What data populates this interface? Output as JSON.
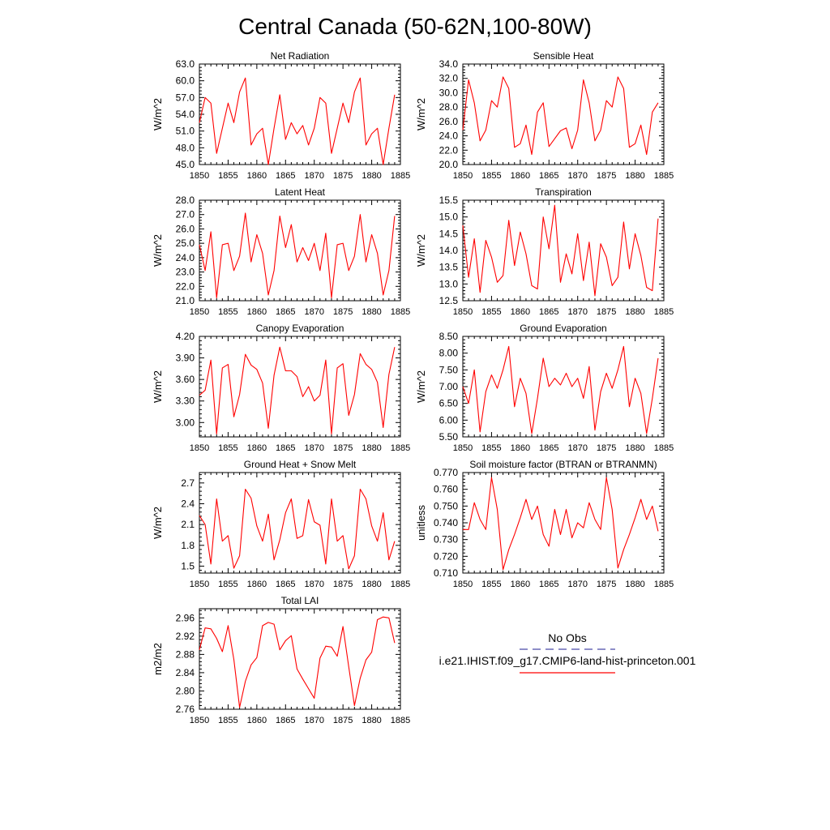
{
  "figure": {
    "title": "Central Canada (50-62N,100-80W)",
    "line_color": "#ff0000",
    "obs_color": "#4a4aa8"
  },
  "legend": {
    "obs_label": "No Obs",
    "model_label": "i.e21.IHIST.f09_g17.CMIP6-land-hist-princeton.001"
  },
  "chart_data": [
    {
      "type": "line",
      "title": "Net Radiation",
      "ylabel": "W/m^2",
      "xlim": [
        1850,
        1885
      ],
      "ylim": [
        45.0,
        63.0
      ],
      "xticks": [
        "1850",
        "1855",
        "1860",
        "1865",
        "1870",
        "1875",
        "1880",
        "1885"
      ],
      "yticks": [
        "45.0",
        "48.0",
        "51.0",
        "54.0",
        "57.0",
        "60.0",
        "63.0"
      ],
      "x": [
        1850,
        1851,
        1852,
        1853,
        1854,
        1855,
        1856,
        1857,
        1858,
        1859,
        1860,
        1861,
        1862,
        1863,
        1864,
        1865,
        1866,
        1867,
        1868,
        1869,
        1870,
        1871,
        1872,
        1873,
        1874,
        1875,
        1876,
        1877,
        1878,
        1879,
        1880,
        1881,
        1882,
        1883,
        1884
      ],
      "values": [
        52.5,
        57.0,
        56.0,
        47.0,
        51.5,
        56.0,
        52.5,
        58.0,
        60.5,
        48.5,
        50.5,
        51.5,
        45.0,
        51.5,
        57.5,
        49.5,
        52.5,
        50.5,
        52.0,
        48.5,
        51.5,
        57.0,
        56.0,
        47.0,
        51.5,
        56.0,
        52.5,
        58.0,
        60.5,
        48.5,
        50.5,
        51.5,
        45.0,
        51.5,
        57.5
      ]
    },
    {
      "type": "line",
      "title": "Sensible Heat",
      "ylabel": "W/m^2",
      "xlim": [
        1850,
        1885
      ],
      "ylim": [
        20.0,
        34.0
      ],
      "xticks": [
        "1850",
        "1855",
        "1860",
        "1865",
        "1870",
        "1875",
        "1880",
        "1885"
      ],
      "yticks": [
        "20.0",
        "22.0",
        "24.0",
        "26.0",
        "28.0",
        "30.0",
        "32.0",
        "34.0"
      ],
      "x": [
        1850,
        1851,
        1852,
        1853,
        1854,
        1855,
        1856,
        1857,
        1858,
        1859,
        1860,
        1861,
        1862,
        1863,
        1864,
        1865,
        1866,
        1867,
        1868,
        1869,
        1870,
        1871,
        1872,
        1873,
        1874,
        1875,
        1876,
        1877,
        1878,
        1879,
        1880,
        1881,
        1882,
        1883,
        1884
      ],
      "values": [
        24.8,
        31.8,
        28.6,
        23.3,
        24.8,
        28.9,
        28.0,
        32.2,
        30.6,
        22.4,
        22.9,
        25.5,
        21.4,
        27.3,
        28.6,
        22.5,
        23.6,
        24.7,
        25.1,
        22.2,
        24.8,
        31.8,
        28.6,
        23.3,
        24.8,
        28.9,
        28.0,
        32.2,
        30.6,
        22.4,
        22.9,
        25.5,
        21.4,
        27.3,
        28.6
      ]
    },
    {
      "type": "line",
      "title": "Latent Heat",
      "ylabel": "W/m^2",
      "xlim": [
        1850,
        1885
      ],
      "ylim": [
        21.0,
        28.0
      ],
      "xticks": [
        "1850",
        "1855",
        "1860",
        "1865",
        "1870",
        "1875",
        "1880",
        "1885"
      ],
      "yticks": [
        "21.0",
        "22.0",
        "23.0",
        "24.0",
        "25.0",
        "26.0",
        "27.0",
        "28.0"
      ],
      "x": [
        1850,
        1851,
        1852,
        1853,
        1854,
        1855,
        1856,
        1857,
        1858,
        1859,
        1860,
        1861,
        1862,
        1863,
        1864,
        1865,
        1866,
        1867,
        1868,
        1869,
        1870,
        1871,
        1872,
        1873,
        1874,
        1875,
        1876,
        1877,
        1878,
        1879,
        1880,
        1881,
        1882,
        1883,
        1884
      ],
      "values": [
        24.9,
        23.1,
        25.8,
        21.2,
        24.9,
        25.0,
        23.1,
        24.1,
        27.1,
        23.7,
        25.6,
        24.3,
        21.4,
        23.1,
        26.9,
        24.7,
        26.3,
        23.7,
        24.7,
        23.8,
        25.0,
        23.1,
        25.7,
        21.2,
        24.9,
        25.0,
        23.1,
        24.1,
        27.0,
        23.7,
        25.6,
        24.3,
        21.4,
        23.1,
        26.9
      ]
    },
    {
      "type": "line",
      "title": "Transpiration",
      "ylabel": "W/m^2",
      "xlim": [
        1850,
        1885
      ],
      "ylim": [
        12.5,
        15.5
      ],
      "xticks": [
        "1850",
        "1855",
        "1860",
        "1865",
        "1870",
        "1875",
        "1880",
        "1885"
      ],
      "yticks": [
        "12.5",
        "13.0",
        "13.5",
        "14.0",
        "14.5",
        "15.0",
        "15.5"
      ],
      "x": [
        1850,
        1851,
        1852,
        1853,
        1854,
        1855,
        1856,
        1857,
        1858,
        1859,
        1860,
        1861,
        1862,
        1863,
        1864,
        1865,
        1866,
        1867,
        1868,
        1869,
        1870,
        1871,
        1872,
        1873,
        1874,
        1875,
        1876,
        1877,
        1878,
        1879,
        1880,
        1881,
        1882,
        1883,
        1884
      ],
      "values": [
        14.75,
        13.2,
        14.35,
        12.75,
        14.3,
        13.8,
        13.05,
        13.25,
        14.9,
        13.55,
        14.55,
        13.9,
        12.95,
        12.85,
        15.0,
        14.05,
        15.35,
        13.05,
        13.9,
        13.3,
        14.5,
        13.1,
        14.25,
        12.65,
        14.2,
        13.8,
        12.95,
        13.2,
        14.85,
        13.45,
        14.5,
        13.85,
        12.9,
        12.8,
        14.95
      ]
    },
    {
      "type": "line",
      "title": "Canopy Evaporation",
      "ylabel": "W/m^2",
      "xlim": [
        1850,
        1885
      ],
      "ylim": [
        2.8,
        4.2
      ],
      "xticks": [
        "1850",
        "1855",
        "1860",
        "1865",
        "1870",
        "1875",
        "1880",
        "1885"
      ],
      "yticks": [
        "3.00",
        "3.30",
        "3.60",
        "3.90",
        "4.20"
      ],
      "x": [
        1850,
        1851,
        1852,
        1853,
        1854,
        1855,
        1856,
        1857,
        1858,
        1859,
        1860,
        1861,
        1862,
        1863,
        1864,
        1865,
        1866,
        1867,
        1868,
        1869,
        1870,
        1871,
        1872,
        1873,
        1874,
        1875,
        1876,
        1877,
        1878,
        1879,
        1880,
        1881,
        1882,
        1883,
        1884
      ],
      "values": [
        3.38,
        3.45,
        3.87,
        2.84,
        3.76,
        3.81,
        3.08,
        3.39,
        3.95,
        3.8,
        3.74,
        3.55,
        2.92,
        3.66,
        4.05,
        3.72,
        3.72,
        3.64,
        3.36,
        3.5,
        3.3,
        3.38,
        3.87,
        2.84,
        3.76,
        3.82,
        3.1,
        3.39,
        3.96,
        3.81,
        3.74,
        3.56,
        2.93,
        3.67,
        4.05
      ]
    },
    {
      "type": "line",
      "title": "Ground Evaporation",
      "ylabel": "W/m^2",
      "xlim": [
        1850,
        1885
      ],
      "ylim": [
        5.5,
        8.5
      ],
      "xticks": [
        "1850",
        "1855",
        "1860",
        "1865",
        "1870",
        "1875",
        "1880",
        "1885"
      ],
      "yticks": [
        "5.50",
        "6.00",
        "6.50",
        "7.00",
        "7.50",
        "8.00",
        "8.50"
      ],
      "x": [
        1850,
        1851,
        1852,
        1853,
        1854,
        1855,
        1856,
        1857,
        1858,
        1859,
        1860,
        1861,
        1862,
        1863,
        1864,
        1865,
        1866,
        1867,
        1868,
        1869,
        1870,
        1871,
        1872,
        1873,
        1874,
        1875,
        1876,
        1877,
        1878,
        1879,
        1880,
        1881,
        1882,
        1883,
        1884
      ],
      "values": [
        7.0,
        6.5,
        7.5,
        5.65,
        6.85,
        7.35,
        6.95,
        7.5,
        8.2,
        6.4,
        7.25,
        6.8,
        5.6,
        6.65,
        7.85,
        7.0,
        7.25,
        7.05,
        7.4,
        7.0,
        7.25,
        6.65,
        7.6,
        5.7,
        6.85,
        7.4,
        6.95,
        7.5,
        8.2,
        6.4,
        7.25,
        6.8,
        5.6,
        6.65,
        7.85
      ]
    },
    {
      "type": "line",
      "title": "Ground Heat + Snow Melt",
      "ylabel": "W/m^2",
      "xlim": [
        1850,
        1885
      ],
      "ylim": [
        1.4,
        2.85
      ],
      "xticks": [
        "1850",
        "1855",
        "1860",
        "1865",
        "1870",
        "1875",
        "1880",
        "1885"
      ],
      "yticks": [
        "1.5",
        "1.8",
        "2.1",
        "2.4",
        "2.7"
      ],
      "x": [
        1850,
        1851,
        1852,
        1853,
        1854,
        1855,
        1856,
        1857,
        1858,
        1859,
        1860,
        1861,
        1862,
        1863,
        1864,
        1865,
        1866,
        1867,
        1868,
        1869,
        1870,
        1871,
        1872,
        1873,
        1874,
        1875,
        1876,
        1877,
        1878,
        1879,
        1880,
        1881,
        1882,
        1883,
        1884
      ],
      "values": [
        2.23,
        2.1,
        1.53,
        2.47,
        1.86,
        1.94,
        1.47,
        1.65,
        2.61,
        2.48,
        2.08,
        1.86,
        2.25,
        1.59,
        1.88,
        2.27,
        2.47,
        1.9,
        1.94,
        2.46,
        2.14,
        2.09,
        1.53,
        2.47,
        1.86,
        1.94,
        1.46,
        1.65,
        2.61,
        2.47,
        2.08,
        1.86,
        2.27,
        1.59,
        1.86
      ]
    },
    {
      "type": "line",
      "title": "Soil moisture factor (BTRAN or BTRANMN)",
      "ylabel": "unitless",
      "xlim": [
        1850,
        1885
      ],
      "ylim": [
        0.71,
        0.77
      ],
      "xticks": [
        "1850",
        "1855",
        "1860",
        "1865",
        "1870",
        "1875",
        "1880",
        "1885"
      ],
      "yticks": [
        "0.710",
        "0.720",
        "0.730",
        "0.740",
        "0.750",
        "0.760",
        "0.770"
      ],
      "x": [
        1850,
        1851,
        1852,
        1853,
        1854,
        1855,
        1856,
        1857,
        1858,
        1859,
        1860,
        1861,
        1862,
        1863,
        1864,
        1865,
        1866,
        1867,
        1868,
        1869,
        1870,
        1871,
        1872,
        1873,
        1874,
        1875,
        1876,
        1877,
        1878,
        1879,
        1880,
        1881,
        1882,
        1883,
        1884
      ],
      "values": [
        0.736,
        0.736,
        0.752,
        0.742,
        0.736,
        0.767,
        0.748,
        0.712,
        0.724,
        0.733,
        0.743,
        0.754,
        0.742,
        0.75,
        0.733,
        0.726,
        0.748,
        0.733,
        0.748,
        0.731,
        0.74,
        0.737,
        0.752,
        0.742,
        0.736,
        0.767,
        0.748,
        0.713,
        0.724,
        0.733,
        0.743,
        0.754,
        0.742,
        0.75,
        0.735
      ]
    },
    {
      "type": "line",
      "title": "Total LAI",
      "ylabel": "m2/m2",
      "xlim": [
        1850,
        1885
      ],
      "ylim": [
        2.76,
        2.98
      ],
      "xticks": [
        "1850",
        "1855",
        "1860",
        "1865",
        "1870",
        "1875",
        "1880",
        "1885"
      ],
      "yticks": [
        "2.76",
        "2.80",
        "2.84",
        "2.88",
        "2.92",
        "2.96"
      ],
      "x": [
        1850,
        1851,
        1852,
        1853,
        1854,
        1855,
        1856,
        1857,
        1858,
        1859,
        1860,
        1861,
        1862,
        1863,
        1864,
        1865,
        1866,
        1867,
        1868,
        1869,
        1870,
        1871,
        1872,
        1873,
        1874,
        1875,
        1876,
        1877,
        1878,
        1879,
        1880,
        1881,
        1882,
        1883,
        1884
      ],
      "values": [
        2.89,
        2.938,
        2.936,
        2.915,
        2.886,
        2.943,
        2.869,
        2.764,
        2.821,
        2.857,
        2.873,
        2.943,
        2.95,
        2.946,
        2.89,
        2.91,
        2.921,
        2.848,
        2.826,
        2.805,
        2.784,
        2.872,
        2.898,
        2.896,
        2.876,
        2.941,
        2.853,
        2.768,
        2.828,
        2.868,
        2.885,
        2.956,
        2.962,
        2.96,
        2.905
      ]
    }
  ]
}
